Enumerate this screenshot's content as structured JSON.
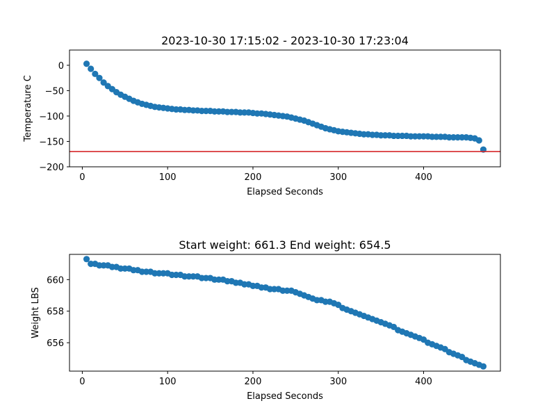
{
  "chart_data": [
    {
      "type": "scatter",
      "title": "2023-10-30 17:15:02 - 2023-10-30 17:23:04",
      "xlabel": "Elapsed Seconds",
      "ylabel": "Temperature C",
      "xlim": [
        -15,
        490
      ],
      "ylim": [
        -200,
        30
      ],
      "xticks": [
        0,
        100,
        200,
        300,
        400
      ],
      "yticks": [
        0,
        -50,
        -100,
        -150,
        -200
      ],
      "grid": false,
      "marker_color": "#1f77b4",
      "reference_line": {
        "y": -170,
        "color": "#d62728"
      },
      "series": [
        {
          "x": [
            5,
            10,
            15,
            20,
            25,
            30,
            35,
            40,
            45,
            50,
            55,
            60,
            65,
            70,
            75,
            80,
            85,
            90,
            95,
            100,
            105,
            110,
            115,
            120,
            125,
            130,
            135,
            140,
            145,
            150,
            155,
            160,
            165,
            170,
            175,
            180,
            185,
            190,
            195,
            200,
            205,
            210,
            215,
            220,
            225,
            230,
            235,
            240,
            245,
            250,
            255,
            260,
            265,
            270,
            275,
            280,
            285,
            290,
            295,
            300,
            305,
            310,
            315,
            320,
            325,
            330,
            335,
            340,
            345,
            350,
            355,
            360,
            365,
            370,
            375,
            380,
            385,
            390,
            395,
            400,
            405,
            410,
            415,
            420,
            425,
            430,
            435,
            440,
            445,
            450,
            455,
            460,
            465,
            470
          ],
          "y": [
            3,
            -7,
            -17,
            -25,
            -34,
            -41,
            -47,
            -53,
            -58,
            -62,
            -66,
            -70,
            -73,
            -76,
            -78,
            -80,
            -82,
            -83,
            -84,
            -85,
            -86,
            -87,
            -87,
            -88,
            -88,
            -89,
            -89,
            -90,
            -90,
            -90,
            -91,
            -91,
            -91,
            -92,
            -92,
            -92,
            -93,
            -93,
            -93,
            -94,
            -95,
            -95,
            -96,
            -97,
            -98,
            -99,
            -100,
            -101,
            -103,
            -105,
            -107,
            -109,
            -112,
            -115,
            -118,
            -121,
            -124,
            -126,
            -128,
            -130,
            -131,
            -132,
            -133,
            -134,
            -135,
            -136,
            -136,
            -137,
            -137,
            -138,
            -138,
            -138,
            -139,
            -139,
            -139,
            -139,
            -140,
            -140,
            -140,
            -140,
            -140,
            -141,
            -141,
            -141,
            -141,
            -142,
            -142,
            -142,
            -142,
            -142,
            -143,
            -144,
            -148,
            -166
          ]
        }
      ]
    },
    {
      "type": "scatter",
      "title": "Start weight: 661.3 End weight: 654.5",
      "xlabel": "Elapsed Seconds",
      "ylabel": "Weight LBS",
      "xlim": [
        -15,
        490
      ],
      "ylim": [
        654.2,
        661.6
      ],
      "xticks": [
        0,
        100,
        200,
        300,
        400
      ],
      "yticks": [
        656,
        658,
        660
      ],
      "grid": false,
      "marker_color": "#1f77b4",
      "series": [
        {
          "x": [
            5,
            10,
            15,
            20,
            25,
            30,
            35,
            40,
            45,
            50,
            55,
            60,
            65,
            70,
            75,
            80,
            85,
            90,
            95,
            100,
            105,
            110,
            115,
            120,
            125,
            130,
            135,
            140,
            145,
            150,
            155,
            160,
            165,
            170,
            175,
            180,
            185,
            190,
            195,
            200,
            205,
            210,
            215,
            220,
            225,
            230,
            235,
            240,
            245,
            250,
            255,
            260,
            265,
            270,
            275,
            280,
            285,
            290,
            295,
            300,
            305,
            310,
            315,
            320,
            325,
            330,
            335,
            340,
            345,
            350,
            355,
            360,
            365,
            370,
            375,
            380,
            385,
            390,
            395,
            400,
            405,
            410,
            415,
            420,
            425,
            430,
            435,
            440,
            445,
            450,
            455,
            460,
            465,
            470
          ],
          "y": [
            661.3,
            661.0,
            661.0,
            660.9,
            660.9,
            660.9,
            660.8,
            660.8,
            660.7,
            660.7,
            660.7,
            660.6,
            660.6,
            660.5,
            660.5,
            660.5,
            660.4,
            660.4,
            660.4,
            660.4,
            660.3,
            660.3,
            660.3,
            660.2,
            660.2,
            660.2,
            660.2,
            660.1,
            660.1,
            660.1,
            660.0,
            660.0,
            660.0,
            659.9,
            659.9,
            659.8,
            659.8,
            659.7,
            659.7,
            659.6,
            659.6,
            659.5,
            659.5,
            659.4,
            659.4,
            659.4,
            659.3,
            659.3,
            659.3,
            659.2,
            659.1,
            659.0,
            658.9,
            658.8,
            658.7,
            658.7,
            658.6,
            658.6,
            658.5,
            658.4,
            658.2,
            658.1,
            658.0,
            657.9,
            657.8,
            657.7,
            657.6,
            657.5,
            657.4,
            657.3,
            657.2,
            657.1,
            657.0,
            656.8,
            656.7,
            656.6,
            656.5,
            656.4,
            656.3,
            656.2,
            656.0,
            655.9,
            655.8,
            655.7,
            655.6,
            655.4,
            655.3,
            655.2,
            655.1,
            654.9,
            654.8,
            654.7,
            654.6,
            654.5
          ]
        }
      ]
    }
  ]
}
